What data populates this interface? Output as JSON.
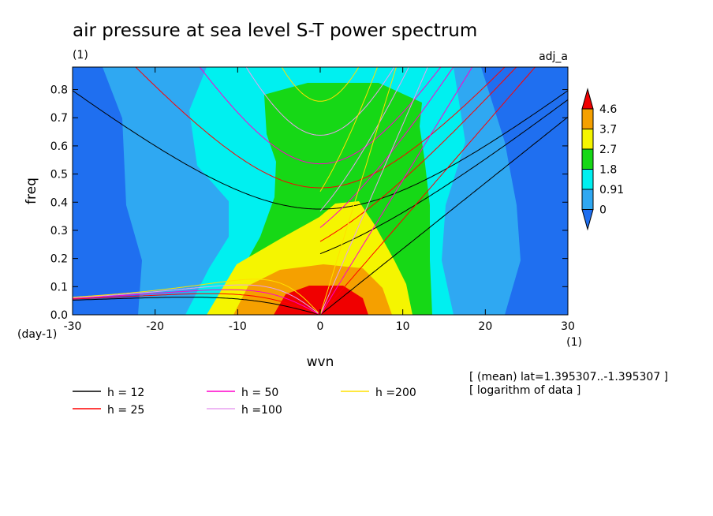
{
  "chart_data": {
    "type": "heatmap",
    "title": "air pressure at sea level S-T power spectrum",
    "subtitle": "(1)",
    "label_right": "adj_a",
    "xlabel": "wvn",
    "ylabel": "freq",
    "x_unit": "(1)",
    "y_unit": "(day-1)",
    "xlim": [
      -30,
      30
    ],
    "ylim": [
      0,
      0.88
    ],
    "xticks": [
      "-30",
      "-20",
      "-10",
      "0",
      "10",
      "20",
      "30"
    ],
    "yticks": [
      "0.0",
      "0.1",
      "0.2",
      "0.3",
      "0.4",
      "0.5",
      "0.6",
      "0.7",
      "0.8"
    ],
    "colorbar": {
      "levels": [
        "0",
        "0.91",
        "1.8",
        "2.7",
        "3.7",
        "4.6"
      ],
      "colors": [
        "#1f6ff0",
        "#2fa8f2",
        "#00f0f0",
        "#16d816",
        "#f5f500",
        "#f5a000",
        "#f00000"
      ]
    },
    "dispersion_curves": [
      {
        "name": "h = 12",
        "h": 12,
        "color": "#000000"
      },
      {
        "name": "h = 25",
        "h": 25,
        "color": "#ff0000"
      },
      {
        "name": "h = 50",
        "h": 50,
        "color": "#ff00cc"
      },
      {
        "name": "h =100",
        "h": 100,
        "color": "#e8a0f0"
      },
      {
        "name": "h =200",
        "h": 200,
        "color": "#ffe000"
      }
    ],
    "notes": [
      "[ (mean) lat=1.395307..-1.395307 ]",
      "[ logarithm of data ]"
    ]
  }
}
